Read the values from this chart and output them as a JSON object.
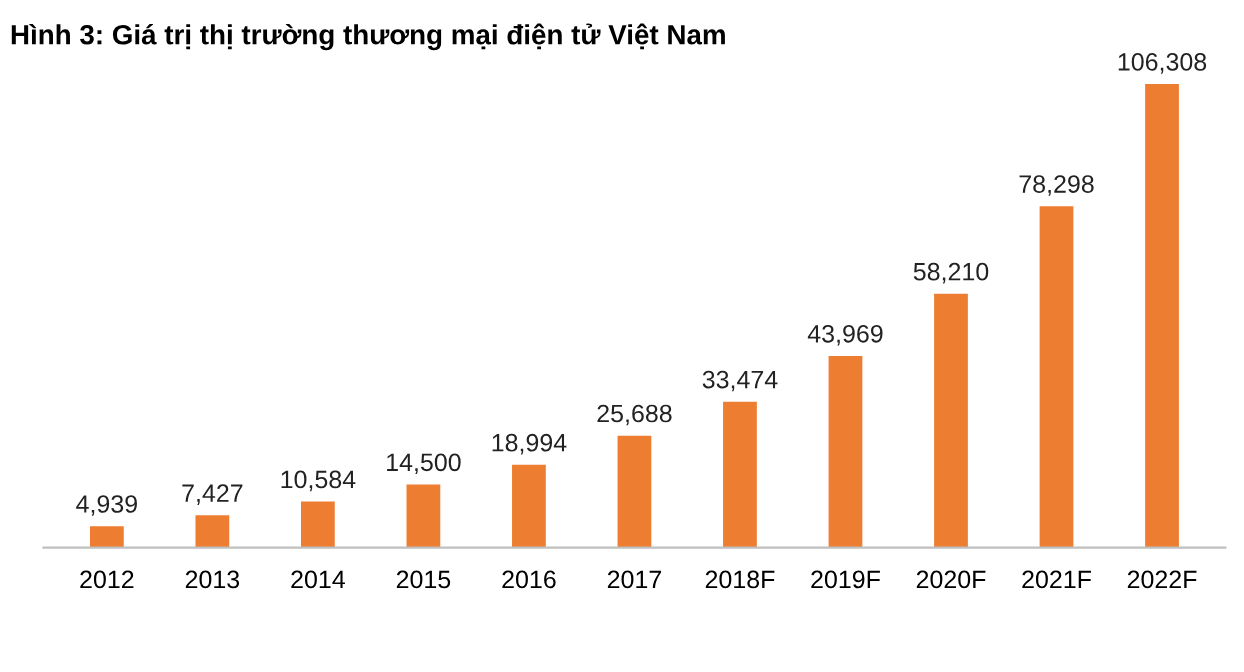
{
  "chart_data": {
    "type": "bar",
    "title": "Hình 3: Giá trị thị trường thương mại điện tử Việt Nam",
    "categories": [
      "2012",
      "2013",
      "2014",
      "2015",
      "2016",
      "2017",
      "2018F",
      "2019F",
      "2020F",
      "2021F",
      "2022F"
    ],
    "values": [
      4939,
      7427,
      10584,
      14500,
      18994,
      25688,
      33474,
      43969,
      58210,
      78298,
      106308
    ],
    "value_labels": [
      "4,939",
      "7,427",
      "10,584",
      "14,500",
      "18,994",
      "25,688",
      "33,474",
      "43,969",
      "58,210",
      "78,298",
      "106,308"
    ],
    "color": "#ed7d31",
    "grid": false,
    "legend": false
  }
}
